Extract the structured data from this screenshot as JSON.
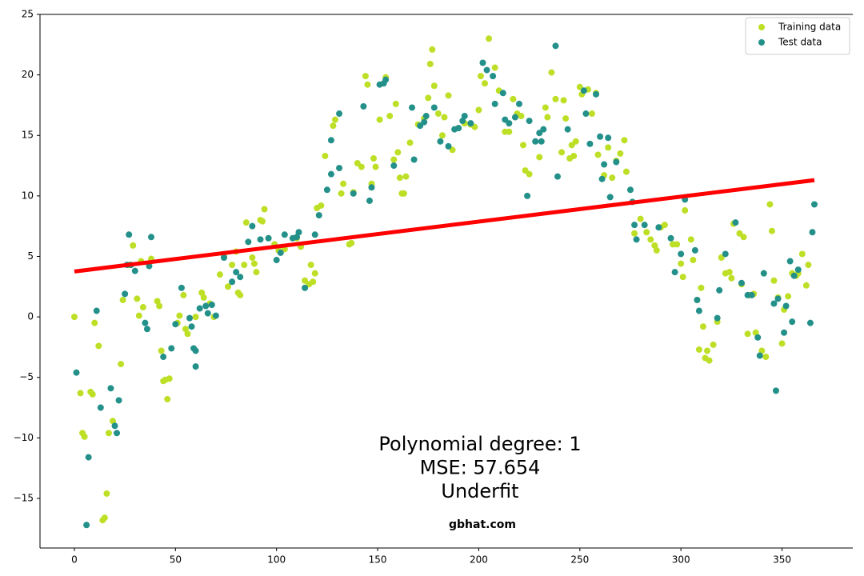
{
  "chart_data": {
    "type": "scatter",
    "xlim": [
      -17,
      385
    ],
    "ylim": [
      -19.1,
      25
    ],
    "xticks": [
      0,
      50,
      100,
      150,
      200,
      250,
      300,
      350
    ],
    "yticks": [
      {
        "value": -15,
        "label": "−15"
      },
      {
        "value": -10,
        "label": "−10"
      },
      {
        "value": -5,
        "label": "−5"
      },
      0,
      5,
      10,
      15,
      20,
      25
    ],
    "legend": "upper right",
    "series": [
      {
        "name": "Training data",
        "color": "#bddf26",
        "x": [
          0,
          3,
          4,
          5,
          8,
          9,
          10,
          12,
          14,
          15,
          16,
          17,
          19,
          23,
          24,
          27,
          29,
          31,
          32,
          33,
          34,
          38,
          41,
          42,
          43,
          44,
          45,
          46,
          47,
          51,
          52,
          54,
          55,
          56,
          60,
          63,
          64,
          67,
          69,
          72,
          74,
          76,
          78,
          80,
          81,
          82,
          84,
          85,
          88,
          89,
          90,
          92,
          93,
          94,
          96,
          99,
          101,
          104,
          110,
          112,
          114,
          116,
          117,
          118,
          119,
          120,
          122,
          124,
          128,
          129,
          132,
          133,
          136,
          137,
          138,
          140,
          142,
          144,
          145,
          147,
          148,
          149,
          151,
          154,
          156,
          158,
          159,
          160,
          161,
          162,
          163,
          164,
          166,
          170,
          173,
          175,
          176,
          177,
          178,
          180,
          182,
          183,
          185,
          187,
          190,
          193,
          196,
          198,
          200,
          201,
          203,
          205,
          208,
          210,
          213,
          215,
          217,
          219,
          221,
          222,
          223,
          225,
          230,
          233,
          234,
          236,
          238,
          241,
          242,
          243,
          245,
          246,
          247,
          248,
          250,
          251,
          254,
          256,
          258,
          259,
          262,
          264,
          266,
          268,
          270,
          272,
          273,
          277,
          280,
          283,
          285,
          287,
          288,
          290,
          292,
          296,
          298,
          300,
          301,
          302,
          305,
          306,
          308,
          309,
          310,
          311,
          312,
          313,
          314,
          316,
          318,
          320,
          322,
          324,
          325,
          326,
          329,
          330,
          331,
          333,
          334,
          336,
          337,
          340,
          341,
          342,
          344,
          345,
          346,
          348,
          350,
          351,
          353,
          355,
          357,
          358,
          360,
          362,
          363
        ],
        "values": [
          0,
          -6.3,
          -9.6,
          -9.9,
          -6.2,
          -6.4,
          -0.5,
          -2.4,
          -16.8,
          -16.6,
          -14.6,
          -9.6,
          -8.6,
          -3.9,
          1.4,
          4.3,
          5.9,
          1.5,
          0.1,
          4.6,
          0.8,
          4.8,
          1.3,
          0.9,
          -2.8,
          -5.3,
          -5.2,
          -6.8,
          -5.1,
          -0.5,
          0.1,
          1.8,
          -1,
          -1.4,
          0,
          2,
          1.6,
          1.1,
          0,
          3.5,
          5,
          2.5,
          4.3,
          5.4,
          2,
          1.8,
          4.3,
          7.8,
          4.9,
          4.4,
          3.7,
          8,
          7.9,
          8.9,
          6.5,
          6,
          5.5,
          5.6,
          6.5,
          5.8,
          3,
          2.7,
          4.3,
          2.9,
          3.6,
          9,
          9.2,
          13.3,
          15.8,
          16.3,
          10.2,
          11,
          6,
          6.1,
          10.3,
          12.7,
          12.4,
          19.9,
          19.2,
          11,
          13.1,
          12.4,
          16.3,
          19.8,
          16.6,
          13,
          17.6,
          13.6,
          11.5,
          10.2,
          10.2,
          11.6,
          14.4,
          15.9,
          16.4,
          18.1,
          20.9,
          22.1,
          19.1,
          16.8,
          15,
          16.5,
          18.3,
          13.8,
          15.6,
          16,
          15.9,
          15.7,
          17.1,
          19.9,
          19.3,
          23,
          20.6,
          18.7,
          15.3,
          15.3,
          18,
          16.8,
          16.6,
          14.2,
          12.1,
          11.8,
          13.2,
          17.3,
          16.5,
          20.2,
          18,
          13.6,
          17.9,
          16.4,
          13.1,
          14.2,
          13.3,
          14.5,
          19,
          18.4,
          18.8,
          16.8,
          18.5,
          13.4,
          11.7,
          14,
          11.5,
          12.9,
          13.5,
          14.6,
          12,
          6.9,
          8.1,
          7,
          6.4,
          5.9,
          5.5,
          7.4,
          7.6,
          6,
          6,
          4.4,
          3.3,
          8.8,
          6.4,
          4.7,
          1.4,
          -2.7,
          2.4,
          -0.8,
          -3.4,
          -2.8,
          -3.6,
          -2.3,
          -0.4,
          4.9,
          3.6,
          3.7,
          3.2,
          7.7,
          6.9,
          2.7,
          6.6,
          -1.4,
          1.8,
          1.9,
          -1.3,
          -2.8,
          3.6,
          -3.3,
          9.3,
          7.1,
          3,
          1.6,
          -2.2,
          0.6,
          1.7,
          3.6,
          3.4,
          3.6,
          5.2,
          2.6,
          4.3
        ]
      },
      {
        "name": "Test data",
        "color": "#23908a",
        "x": [
          1,
          6,
          7,
          11,
          13,
          18,
          20,
          21,
          22,
          25,
          26,
          27,
          28,
          30,
          35,
          36,
          37,
          38,
          44,
          48,
          50,
          53,
          57,
          58,
          59,
          60,
          60,
          62,
          65,
          66,
          68,
          70,
          74,
          78,
          80,
          82,
          86,
          88,
          92,
          96,
          100,
          102,
          104,
          108,
          110,
          111,
          114,
          119,
          121,
          125,
          127,
          127,
          131,
          131,
          138,
          143,
          146,
          147,
          151,
          153,
          154,
          158,
          167,
          168,
          171,
          173,
          174,
          178,
          181,
          185,
          188,
          190,
          192,
          193,
          196,
          202,
          204,
          207,
          208,
          212,
          213,
          215,
          218,
          220,
          224,
          225,
          228,
          230,
          231,
          232,
          238,
          239,
          244,
          252,
          253,
          255,
          258,
          260,
          261,
          262,
          264,
          265,
          268,
          275,
          276,
          277,
          278,
          282,
          289,
          295,
          297,
          300,
          302,
          307,
          308,
          309,
          318,
          319,
          322,
          327,
          330,
          333,
          335,
          338,
          339,
          341,
          346,
          347,
          348,
          351,
          352,
          354,
          355,
          356,
          358,
          364,
          365,
          366
        ],
        "values": [
          -4.6,
          -17.2,
          -11.6,
          0.5,
          -7.5,
          -5.9,
          -9,
          -9.6,
          -6.9,
          1.9,
          4.3,
          6.8,
          4.3,
          3.8,
          -0.5,
          -1,
          4.2,
          6.6,
          -3.3,
          -2.6,
          -0.6,
          2.4,
          -0.1,
          -0.8,
          -2.6,
          -2.8,
          -4.1,
          0.7,
          0.9,
          0.3,
          1,
          0.1,
          4.9,
          2.9,
          3.7,
          3.3,
          6.2,
          7.5,
          6.4,
          6.5,
          4.7,
          5.3,
          6.8,
          6.5,
          6.6,
          7,
          2.4,
          6.8,
          8.4,
          10.5,
          11.8,
          14.6,
          16.8,
          12.3,
          10.2,
          17.4,
          9.6,
          10.7,
          19.2,
          19.3,
          19.6,
          12.5,
          17.3,
          13,
          15.8,
          16.1,
          16.6,
          17.3,
          14.5,
          14.1,
          15.5,
          15.6,
          16.2,
          16.6,
          16,
          21,
          20.4,
          19.9,
          17.6,
          18.5,
          16.3,
          16,
          16.5,
          17.6,
          10,
          16.2,
          14.5,
          15.2,
          14.5,
          15.5,
          22.4,
          11.6,
          15.5,
          18.7,
          16.8,
          14.3,
          18.4,
          14.9,
          11.4,
          12.6,
          14.8,
          9.9,
          12.8,
          10.5,
          9.5,
          7.6,
          6.4,
          7.6,
          7.4,
          6.5,
          3.7,
          5.2,
          9.7,
          5.5,
          1.4,
          0.5,
          -0.1,
          2.2,
          5.2,
          7.8,
          2.8,
          1.8,
          1.8,
          -1.7,
          -3.2,
          3.6,
          1.1,
          -6.1,
          1.5,
          -1.3,
          0.9,
          4.6,
          -0.4,
          3.4,
          3.9,
          -0.5,
          7,
          9.3
        ]
      }
    ],
    "fit_line": {
      "color": "#ff0000",
      "x": [
        0,
        366
      ],
      "values": [
        3.75,
        11.3
      ]
    },
    "annotation": [
      "Polynomial degree: 1",
      "MSE: 57.654",
      "Underfit"
    ],
    "watermark": "gbhat.com"
  }
}
